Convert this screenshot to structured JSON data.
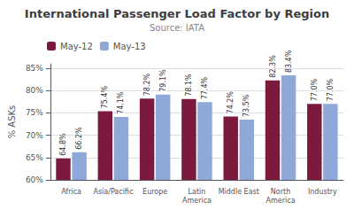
{
  "chart_data": {
    "type": "bar",
    "title": "International Passenger Load Factor by Region",
    "subtitle": "Source: IATA",
    "ylabel": "% ASKs",
    "categories": [
      "Africa",
      "Asia/Pacific",
      "Europe",
      "Latin\nAmerica",
      "Middle East",
      "North\nAmerica",
      "Industry"
    ],
    "series": [
      {
        "name": "May-12",
        "color": "#7B1A3E",
        "values": [
          64.8,
          75.4,
          78.2,
          78.1,
          74.2,
          82.3,
          77.0
        ],
        "value_labels": [
          "64.8%",
          "75.4%",
          "78.2%",
          "78.1%",
          "74.2%",
          "82.3%",
          "77.0%"
        ]
      },
      {
        "name": "May-13",
        "color": "#8EA9D8",
        "values": [
          66.2,
          74.1,
          79.1,
          77.4,
          73.5,
          83.4,
          77.0
        ],
        "value_labels": [
          "66.2%",
          "74.1%",
          "79.1%",
          "77.4%",
          "73.5%",
          "83.4%",
          "77.0%"
        ]
      }
    ],
    "ylim": [
      60,
      86
    ],
    "yticks": [
      {
        "value": 60,
        "label": "60%"
      },
      {
        "value": 65,
        "label": "65%"
      },
      {
        "value": 70,
        "label": "70%"
      },
      {
        "value": 75,
        "label": "75%"
      },
      {
        "value": 80,
        "label": "80%"
      },
      {
        "value": 85,
        "label": "85%"
      }
    ],
    "grid": true,
    "data_labels": true,
    "legend": "upper left"
  }
}
